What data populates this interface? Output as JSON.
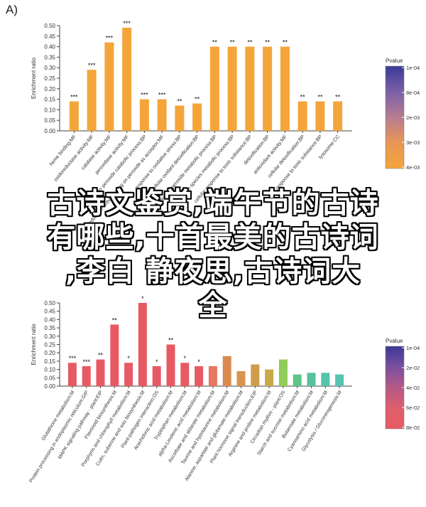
{
  "panel_label": "A)",
  "overlay": {
    "lines": [
      "古诗文鉴赏,端午节的古诗",
      "有哪些,十首最美的古诗词",
      ",李白 静夜思,古诗词大",
      "全"
    ]
  },
  "chart_data": [
    {
      "type": "bar",
      "ylabel": "Enrichment ratio",
      "ylim": [
        0,
        0.5
      ],
      "yticks": [
        0.0,
        0.05,
        0.1,
        0.15,
        0.2,
        0.25,
        0.3,
        0.35,
        0.4,
        0.45,
        0.5
      ],
      "categories": [
        "heme binding:MF",
        "oxidoreductase activity:MF",
        "catalase activity:MF",
        "peroxidase activity:MF",
        "hydrogen peroxide catabolic process:BP",
        "oxidoreductase activity acting on peroxide as acceptor:MF",
        "response to oxidative stress:BP",
        "cellular oxidant detoxification:BP",
        "hydrogen peroxide metabolic process:BP",
        "reactive oxygen species metabolic process:BP",
        "cellular response to toxic substance:BP",
        "detoxification:BP",
        "antioxidant activity:MF",
        "cellular detoxification:BP",
        "response to toxic substance:BP",
        "lysosome:CC"
      ],
      "values": [
        0.14,
        0.29,
        0.42,
        0.49,
        0.15,
        0.15,
        0.12,
        0.13,
        0.4,
        0.4,
        0.4,
        0.4,
        0.4,
        0.14,
        0.14,
        0.14
      ],
      "labels": [
        "***",
        "***",
        "***",
        "***",
        "***",
        "***",
        "**",
        "**",
        "**",
        "**",
        "**",
        "**",
        "**",
        "**",
        "**",
        "**"
      ],
      "colors": [
        "#f4a53a",
        "#f4a53a",
        "#f4a53a",
        "#f4a53a",
        "#f4a53a",
        "#f4a53a",
        "#f4a53a",
        "#f4a53a",
        "#f4a53a",
        "#f4a53a",
        "#f4a53a",
        "#f4a53a",
        "#f4a53a",
        "#f4a53a",
        "#f4a53a",
        "#f4a53a"
      ],
      "legend": {
        "title": "Pvalue",
        "ticks": [
          "1e-04",
          "8e-04",
          "2e-03",
          "3e-03",
          "4e-03"
        ]
      }
    },
    {
      "type": "bar",
      "ylabel": "Enrichment ratio",
      "ylim": [
        0,
        0.5
      ],
      "yticks": [
        0.0,
        0.05,
        0.1,
        0.15,
        0.2,
        0.25,
        0.3,
        0.35,
        0.4,
        0.45,
        0.5
      ],
      "categories": [
        "Glutathione metabolism:M",
        "Protein processing in endoplasmic reticulum:GIP",
        "MAPK signaling pathway - plant:EIP",
        "Flavonoid biosynthesis:M",
        "Porphyrin and chlorophyll metabolism:M",
        "Cutin, suberine and wax biosynthesis:M",
        "Plant-pathogen interaction:OS",
        "Arachidonic acid metabolism:M",
        "Tryptophan metabolism:M",
        "alpha-Linolenic acid metabolism:M",
        "Ascorbate and aldarate metabolism:M",
        "Taurine and hypotaurine metabolism:M",
        "Alanine, aspartate and glutamate metabolism:M",
        "Plant hormone signal transduction:EIP",
        "Arginine and proline metabolism:M",
        "Circadian rhythm - plant:OS",
        "Starch and sucrose metabolism:M",
        "Butanoate metabolism:M",
        "Cyanoamino acid metabolism:M",
        "Glycolysis / Gluconeogenesis:M"
      ],
      "values": [
        0.14,
        0.12,
        0.16,
        0.37,
        0.14,
        0.5,
        0.12,
        0.25,
        0.14,
        0.12,
        0.12,
        0.18,
        0.09,
        0.13,
        0.1,
        0.16,
        0.07,
        0.08,
        0.08,
        0.07
      ],
      "labels": [
        "***",
        "***",
        "**",
        "**",
        "*",
        "*",
        "*",
        "**",
        "*",
        "*",
        "",
        "",
        "",
        "",
        "",
        "",
        "",
        "",
        "",
        ""
      ],
      "colors": [
        "#e85a63",
        "#e85a63",
        "#e85a63",
        "#e85a63",
        "#e85a63",
        "#e85a63",
        "#e85a63",
        "#e85a63",
        "#e85a63",
        "#e85a63",
        "#e87860",
        "#d98a4e",
        "#d8944e",
        "#cf9a4a",
        "#c9a84a",
        "#8fcc58",
        "#5fc48a",
        "#57c29c",
        "#55c4aa",
        "#55c3b0"
      ],
      "legend": {
        "title": "Pvalue",
        "ticks": [
          "1e-04",
          "2e-02",
          "4e-02",
          "6e-02",
          "8e-02"
        ]
      }
    }
  ]
}
